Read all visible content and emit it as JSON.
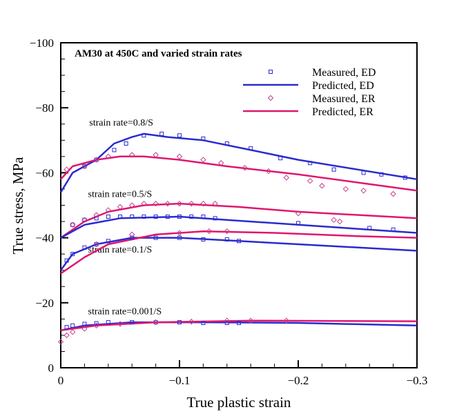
{
  "chart_data": {
    "type": "line",
    "title": "AM30 at 450C and varied strain rates",
    "xlabel": "True plastic strain",
    "ylabel": "True stress, MPa",
    "xlim": [
      0,
      -0.3
    ],
    "ylim": [
      0,
      -100
    ],
    "xticks": [
      0,
      -0.1,
      -0.2,
      -0.3
    ],
    "xtick_labels": [
      "0",
      "−0.1",
      "−0.2",
      "−0.3"
    ],
    "yticks": [
      0,
      -20,
      -40,
      -60,
      -80,
      -100
    ],
    "ytick_labels": [
      "0",
      "−20",
      "−40",
      "−60",
      "−80",
      "−100"
    ],
    "grid": false,
    "legend_placement": "top-right",
    "legend": [
      {
        "label": "Measured, ED",
        "kind": "marker-square",
        "color": "#2a2ad0"
      },
      {
        "label": "Predicted, ED",
        "kind": "line",
        "color": "#2a2ad0"
      },
      {
        "label": "Measured, ER",
        "kind": "marker-diamond",
        "color": "#c0408a"
      },
      {
        "label": "Predicted, ER",
        "kind": "line",
        "color": "#e0166e"
      }
    ],
    "annotations": [
      {
        "text": "strain rate=0.8/S",
        "x": -0.024,
        "y": -74.5
      },
      {
        "text": "strain rate=0.5/S",
        "x": -0.023,
        "y": -52.5
      },
      {
        "text": "strain rate=0.1/S",
        "x": -0.023,
        "y": -35.5
      },
      {
        "text": "strain rate=0.001/S",
        "x": -0.023,
        "y": -16.5
      }
    ],
    "series": [
      {
        "group": "0.8/S",
        "kind": "predicted-ED",
        "color": "#2a2ad0",
        "x": [
          0,
          -0.01,
          -0.03,
          -0.045,
          -0.06,
          -0.07,
          -0.09,
          -0.12,
          -0.16,
          -0.2,
          -0.25,
          -0.3
        ],
        "y": [
          -54,
          -60,
          -64,
          -69,
          -71,
          -72,
          -71,
          -70,
          -67,
          -64,
          -61,
          -58
        ]
      },
      {
        "group": "0.8/S",
        "kind": "predicted-ER",
        "color": "#e0166e",
        "x": [
          0,
          -0.01,
          -0.03,
          -0.05,
          -0.07,
          -0.1,
          -0.14,
          -0.2,
          -0.25,
          -0.3
        ],
        "y": [
          -58,
          -62,
          -64,
          -65,
          -65,
          -64,
          -62,
          -59.5,
          -57,
          -54.5
        ]
      },
      {
        "group": "0.8/S",
        "kind": "measured-ED",
        "color": "#2a2ad0",
        "x": [
          -0.02,
          -0.03,
          -0.045,
          -0.055,
          -0.07,
          -0.085,
          -0.1,
          -0.12,
          -0.14,
          -0.16,
          -0.185,
          -0.21,
          -0.23,
          -0.255,
          -0.27,
          -0.29
        ],
        "y": [
          -62,
          -64,
          -67,
          -69,
          -71.5,
          -72,
          -71.5,
          -70.5,
          -69,
          -67.5,
          -64.5,
          -63,
          -61,
          -60,
          -59.5,
          -58.5
        ]
      },
      {
        "group": "0.8/S",
        "kind": "measured-ER",
        "color": "#c0408a",
        "x": [
          -0.005,
          -0.02,
          -0.03,
          -0.04,
          -0.06,
          -0.08,
          -0.1,
          -0.12,
          -0.135,
          -0.155,
          -0.175,
          -0.19,
          -0.21,
          -0.22,
          -0.24,
          -0.255,
          -0.28
        ],
        "y": [
          -61,
          -62,
          -64,
          -65,
          -65.5,
          -65.5,
          -65,
          -64,
          -63,
          -61.5,
          -60.5,
          -58.5,
          -57.5,
          -56,
          -55,
          -54.5,
          -53.5
        ]
      },
      {
        "group": "0.5/S",
        "kind": "predicted-ER",
        "color": "#e0166e",
        "x": [
          0,
          -0.02,
          -0.04,
          -0.07,
          -0.1,
          -0.15,
          -0.2,
          -0.3
        ],
        "y": [
          -40,
          -45,
          -48,
          -50,
          -50.5,
          -49.5,
          -48,
          -46
        ]
      },
      {
        "group": "0.5/S",
        "kind": "predicted-ED",
        "color": "#2a2ad0",
        "x": [
          0,
          -0.02,
          -0.05,
          -0.1,
          -0.14,
          -0.2,
          -0.3
        ],
        "y": [
          -40,
          -44,
          -46,
          -46.5,
          -45.5,
          -44,
          -41.5
        ]
      },
      {
        "group": "0.5/S",
        "kind": "measured-ED",
        "color": "#2a2ad0",
        "x": [
          -0.01,
          -0.02,
          -0.03,
          -0.04,
          -0.05,
          -0.06,
          -0.07,
          -0.08,
          -0.09,
          -0.1,
          -0.11,
          -0.12,
          -0.13,
          -0.2,
          -0.26,
          -0.28
        ],
        "y": [
          -44,
          -45.5,
          -46,
          -46.5,
          -46.5,
          -46.5,
          -46.5,
          -46.5,
          -46.5,
          -46.5,
          -46.5,
          -46.5,
          -46,
          -44.5,
          -43,
          -42.5
        ]
      },
      {
        "group": "0.5/S",
        "kind": "measured-ER",
        "color": "#c0408a",
        "x": [
          -0.01,
          -0.02,
          -0.03,
          -0.04,
          -0.05,
          -0.06,
          -0.07,
          -0.08,
          -0.09,
          -0.1,
          -0.11,
          -0.12,
          -0.13,
          -0.2,
          -0.23,
          -0.235
        ],
        "y": [
          -44,
          -45.5,
          -47,
          -48.5,
          -49.5,
          -50,
          -50.5,
          -50.5,
          -50.5,
          -50.5,
          -50.5,
          -50.5,
          -50.5,
          -47.5,
          -45.5,
          -45
        ]
      },
      {
        "group": "0.1/S",
        "kind": "predicted-ED",
        "color": "#2a2ad0",
        "x": [
          0,
          -0.01,
          -0.03,
          -0.06,
          -0.1,
          -0.15,
          -0.2,
          -0.3
        ],
        "y": [
          -30,
          -35,
          -38,
          -40,
          -40,
          -39,
          -38,
          -36
        ]
      },
      {
        "group": "0.1/S",
        "kind": "predicted-ER",
        "color": "#e0166e",
        "x": [
          0,
          -0.02,
          -0.04,
          -0.08,
          -0.12,
          -0.18,
          -0.25,
          -0.3
        ],
        "y": [
          -29,
          -34,
          -38,
          -41,
          -42,
          -41.5,
          -40.5,
          -40
        ]
      },
      {
        "group": "0.1/S",
        "kind": "measured-ED",
        "color": "#2a2ad0",
        "x": [
          -0.005,
          -0.01,
          -0.02,
          -0.03,
          -0.04,
          -0.06,
          -0.08,
          -0.1,
          -0.12,
          -0.14,
          -0.15
        ],
        "y": [
          -33,
          -35,
          -37,
          -38,
          -39,
          -40,
          -40,
          -40,
          -39.5,
          -39.5,
          -39
        ]
      },
      {
        "group": "0.1/S",
        "kind": "measured-ER",
        "color": "#c0408a",
        "x": [
          -0.03,
          -0.06,
          -0.1,
          -0.125,
          -0.14
        ],
        "y": [
          -38,
          -41,
          -41.5,
          -42,
          -42
        ]
      },
      {
        "group": "0.001/S",
        "kind": "predicted-ED",
        "color": "#2a2ad0",
        "x": [
          0,
          -0.02,
          -0.06,
          -0.12,
          -0.2,
          -0.3
        ],
        "y": [
          -11.5,
          -13,
          -14,
          -14,
          -13.8,
          -13
        ]
      },
      {
        "group": "0.001/S",
        "kind": "predicted-ER",
        "color": "#e0166e",
        "x": [
          0,
          -0.03,
          -0.08,
          -0.16,
          -0.3
        ],
        "y": [
          -11.5,
          -13,
          -14,
          -14.5,
          -14.3
        ]
      },
      {
        "group": "0.001/S",
        "kind": "measured-ED",
        "color": "#2a2ad0",
        "x": [
          -0.005,
          -0.01,
          -0.02,
          -0.03,
          -0.04,
          -0.06,
          -0.08,
          -0.1,
          -0.12,
          -0.14,
          -0.15
        ],
        "y": [
          -12.5,
          -13,
          -13.5,
          -13.7,
          -14,
          -14,
          -14,
          -14,
          -13.8,
          -13.8,
          -13.8
        ]
      },
      {
        "group": "0.001/S",
        "kind": "measured-ER",
        "color": "#c0408a",
        "x": [
          0,
          -0.005,
          -0.01,
          -0.02,
          -0.03,
          -0.05,
          -0.08,
          -0.11,
          -0.14,
          -0.16,
          -0.19
        ],
        "y": [
          -8,
          -10,
          -11,
          -12,
          -13,
          -13.5,
          -14,
          -14.2,
          -14.5,
          -14.5,
          -14.5
        ]
      }
    ]
  }
}
